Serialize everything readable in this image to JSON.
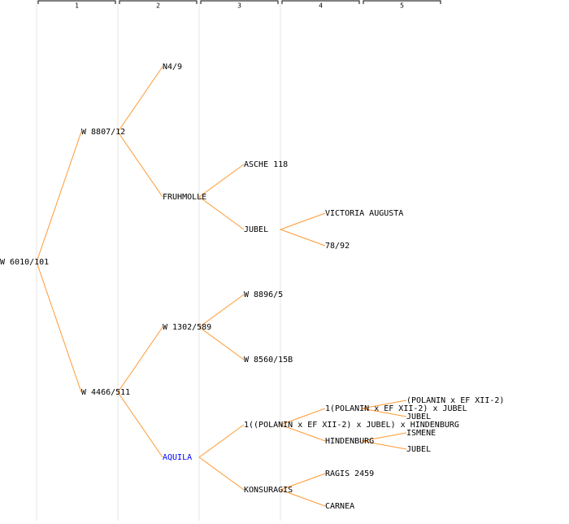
{
  "columns": [
    "1",
    "2",
    "3",
    "4",
    "5"
  ],
  "tree": {
    "label": "W 6010/101",
    "children": [
      {
        "label": "W 8807/12",
        "children": [
          {
            "label": "N4/9",
            "children": []
          },
          {
            "label": "FRUHMOLLE",
            "children": [
              {
                "label": "ASCHE 118",
                "children": []
              },
              {
                "label": "JUBEL",
                "children": [
                  {
                    "label": "VICTORIA AUGUSTA",
                    "children": []
                  },
                  {
                    "label": "78/92",
                    "children": []
                  }
                ]
              }
            ]
          }
        ]
      },
      {
        "label": "W 4466/511",
        "children": [
          {
            "label": "W 1302/589",
            "children": [
              {
                "label": "W 8896/5",
                "children": []
              },
              {
                "label": "W 8560/15B",
                "children": []
              }
            ]
          },
          {
            "label": "AQUILA",
            "color": "#0000ff",
            "children": [
              {
                "label": "1((POLANIN x EF XII-2) x JUBEL) x HINDENBURG",
                "children": [
                  {
                    "label": "1(POLANIN x EF XII-2) x JUBEL",
                    "children": [
                      {
                        "label": "(POLANIN x EF XII-2)",
                        "children": []
                      },
                      {
                        "label": "JUBEL",
                        "children": []
                      }
                    ]
                  },
                  {
                    "label": "HINDENBURG",
                    "children": [
                      {
                        "label": "ISMENE",
                        "children": []
                      },
                      {
                        "label": "JUBEL",
                        "children": []
                      }
                    ]
                  }
                ]
              },
              {
                "label": "KONSURAGIS",
                "children": [
                  {
                    "label": "RAGIS 2459",
                    "children": []
                  },
                  {
                    "label": "CARNEA",
                    "children": []
                  }
                ]
              }
            ]
          }
        ]
      }
    ]
  }
}
